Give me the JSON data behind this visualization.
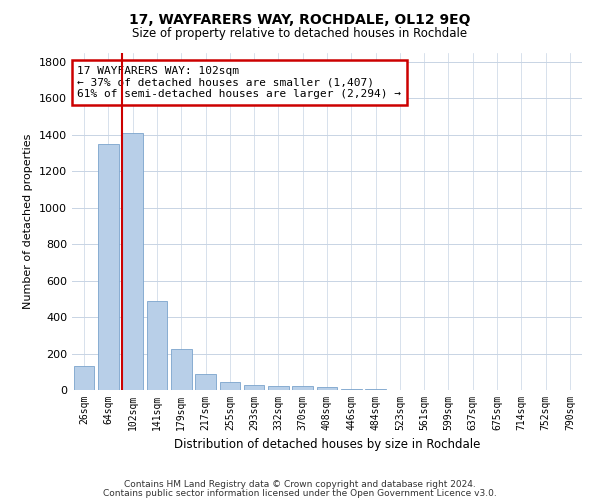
{
  "title": "17, WAYFARERS WAY, ROCHDALE, OL12 9EQ",
  "subtitle": "Size of property relative to detached houses in Rochdale",
  "xlabel": "Distribution of detached houses by size in Rochdale",
  "ylabel": "Number of detached properties",
  "property_line_label": "17 WAYFARERS WAY: 102sqm",
  "annotation_line1": "← 37% of detached houses are smaller (1,407)",
  "annotation_line2": "61% of semi-detached houses are larger (2,294) →",
  "categories": [
    "26sqm",
    "64sqm",
    "102sqm",
    "141sqm",
    "179sqm",
    "217sqm",
    "255sqm",
    "293sqm",
    "332sqm",
    "370sqm",
    "408sqm",
    "446sqm",
    "484sqm",
    "523sqm",
    "561sqm",
    "599sqm",
    "637sqm",
    "675sqm",
    "714sqm",
    "752sqm",
    "790sqm"
  ],
  "values": [
    130,
    1350,
    1407,
    490,
    225,
    90,
    45,
    28,
    20,
    20,
    15,
    8,
    3,
    2,
    2,
    1,
    1,
    0,
    0,
    0,
    0
  ],
  "bar_color": "#b8cfe8",
  "bar_edge_color": "#7ba4cc",
  "red_line_index": 2,
  "red_line_color": "#cc0000",
  "annotation_box_edge_color": "#cc0000",
  "background_color": "#ffffff",
  "grid_color": "#c8d4e4",
  "ylim": [
    0,
    1850
  ],
  "yticks": [
    0,
    200,
    400,
    600,
    800,
    1000,
    1200,
    1400,
    1600,
    1800
  ],
  "footer_line1": "Contains HM Land Registry data © Crown copyright and database right 2024.",
  "footer_line2": "Contains public sector information licensed under the Open Government Licence v3.0."
}
